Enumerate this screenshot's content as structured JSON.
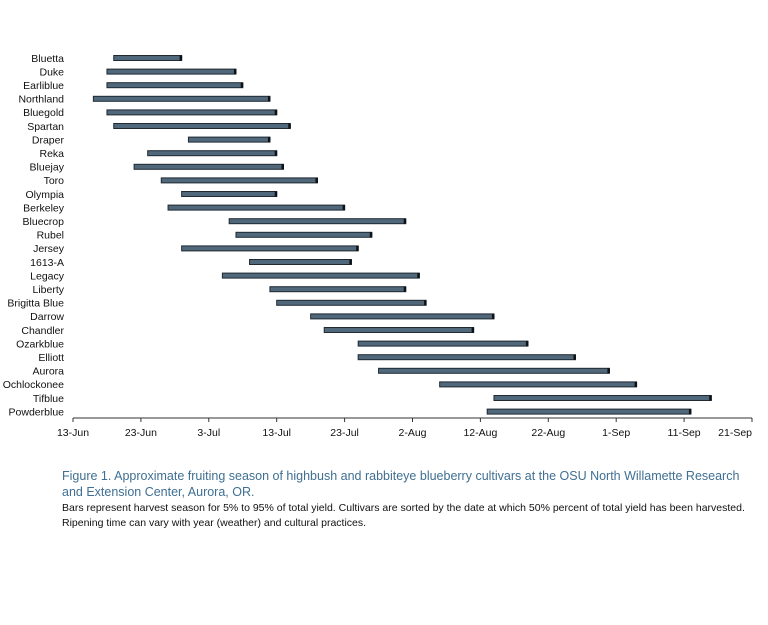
{
  "chart_data": {
    "type": "bar",
    "orientation": "horizontal-range",
    "categories": [
      "Bluetta",
      "Duke",
      "Earliblue",
      "Northland",
      "Bluegold",
      "Spartan",
      "Draper",
      "Reka",
      "Bluejay",
      "Toro",
      "Olympia",
      "Berkeley",
      "Bluecrop",
      "Rubel",
      "Jersey",
      "1613-A",
      "Legacy",
      "Liberty",
      "Brigitta Blue",
      "Darrow",
      "Chandler",
      "Ozarkblue",
      "Elliott",
      "Aurora",
      "Ochlockonee",
      "Tifblue",
      "Powderblue"
    ],
    "series": [
      {
        "start": [
          "2024-06-19",
          "2024-06-18",
          "2024-06-18",
          "2024-06-16",
          "2024-06-18",
          "2024-06-19",
          "2024-06-30",
          "2024-06-24",
          "2024-06-22",
          "2024-06-26",
          "2024-06-29",
          "2024-06-27",
          "2024-07-06",
          "2024-07-07",
          "2024-06-29",
          "2024-07-09",
          "2024-07-05",
          "2024-07-12",
          "2024-07-13",
          "2024-07-18",
          "2024-07-20",
          "2024-07-25",
          "2024-07-25",
          "2024-07-28",
          "2024-08-06",
          "2024-08-14",
          "2024-08-13"
        ],
        "end": [
          "2024-06-29",
          "2024-07-07",
          "2024-07-08",
          "2024-07-12",
          "2024-07-13",
          "2024-07-15",
          "2024-07-12",
          "2024-07-13",
          "2024-07-14",
          "2024-07-19",
          "2024-07-13",
          "2024-07-23",
          "2024-08-01",
          "2024-07-27",
          "2024-07-25",
          "2024-07-24",
          "2024-08-03",
          "2024-08-01",
          "2024-08-04",
          "2024-08-14",
          "2024-08-11",
          "2024-08-19",
          "2024-08-26",
          "2024-08-31",
          "2024-09-04",
          "2024-09-15",
          "2024-09-12"
        ]
      }
    ],
    "xlim": [
      "2024-06-13",
      "2024-09-21"
    ],
    "x_ticks": [
      "2024-06-13",
      "2024-06-23",
      "2024-07-03",
      "2024-07-13",
      "2024-07-23",
      "2024-08-02",
      "2024-08-12",
      "2024-08-22",
      "2024-09-01",
      "2024-09-11",
      "2024-09-21"
    ],
    "x_tick_labels": [
      "13-Jun",
      "23-Jun",
      "3-Jul",
      "13-Jul",
      "23-Jul",
      "2-Aug",
      "12-Aug",
      "22-Aug",
      "1-Sep",
      "11-Sep",
      "21-Sep"
    ],
    "grid": false,
    "legend": "none",
    "colors": {
      "bar": "#51677a",
      "bar_end": "#0d1216"
    }
  },
  "caption": {
    "title": "Figure 1. Approximate fruiting season of highbush and rabbiteye blueberry cultivars at the OSU North Willamette Research and Extension Center, Aurora, OR.",
    "note": "Bars represent harvest season for 5% to 95% of total yield. Cultivars are sorted by the date at which 50% percent of total yield has been harvested. Ripening time can vary with year (weather) and cultural practices."
  },
  "colors": {
    "caption_title": "#3f6f92"
  }
}
